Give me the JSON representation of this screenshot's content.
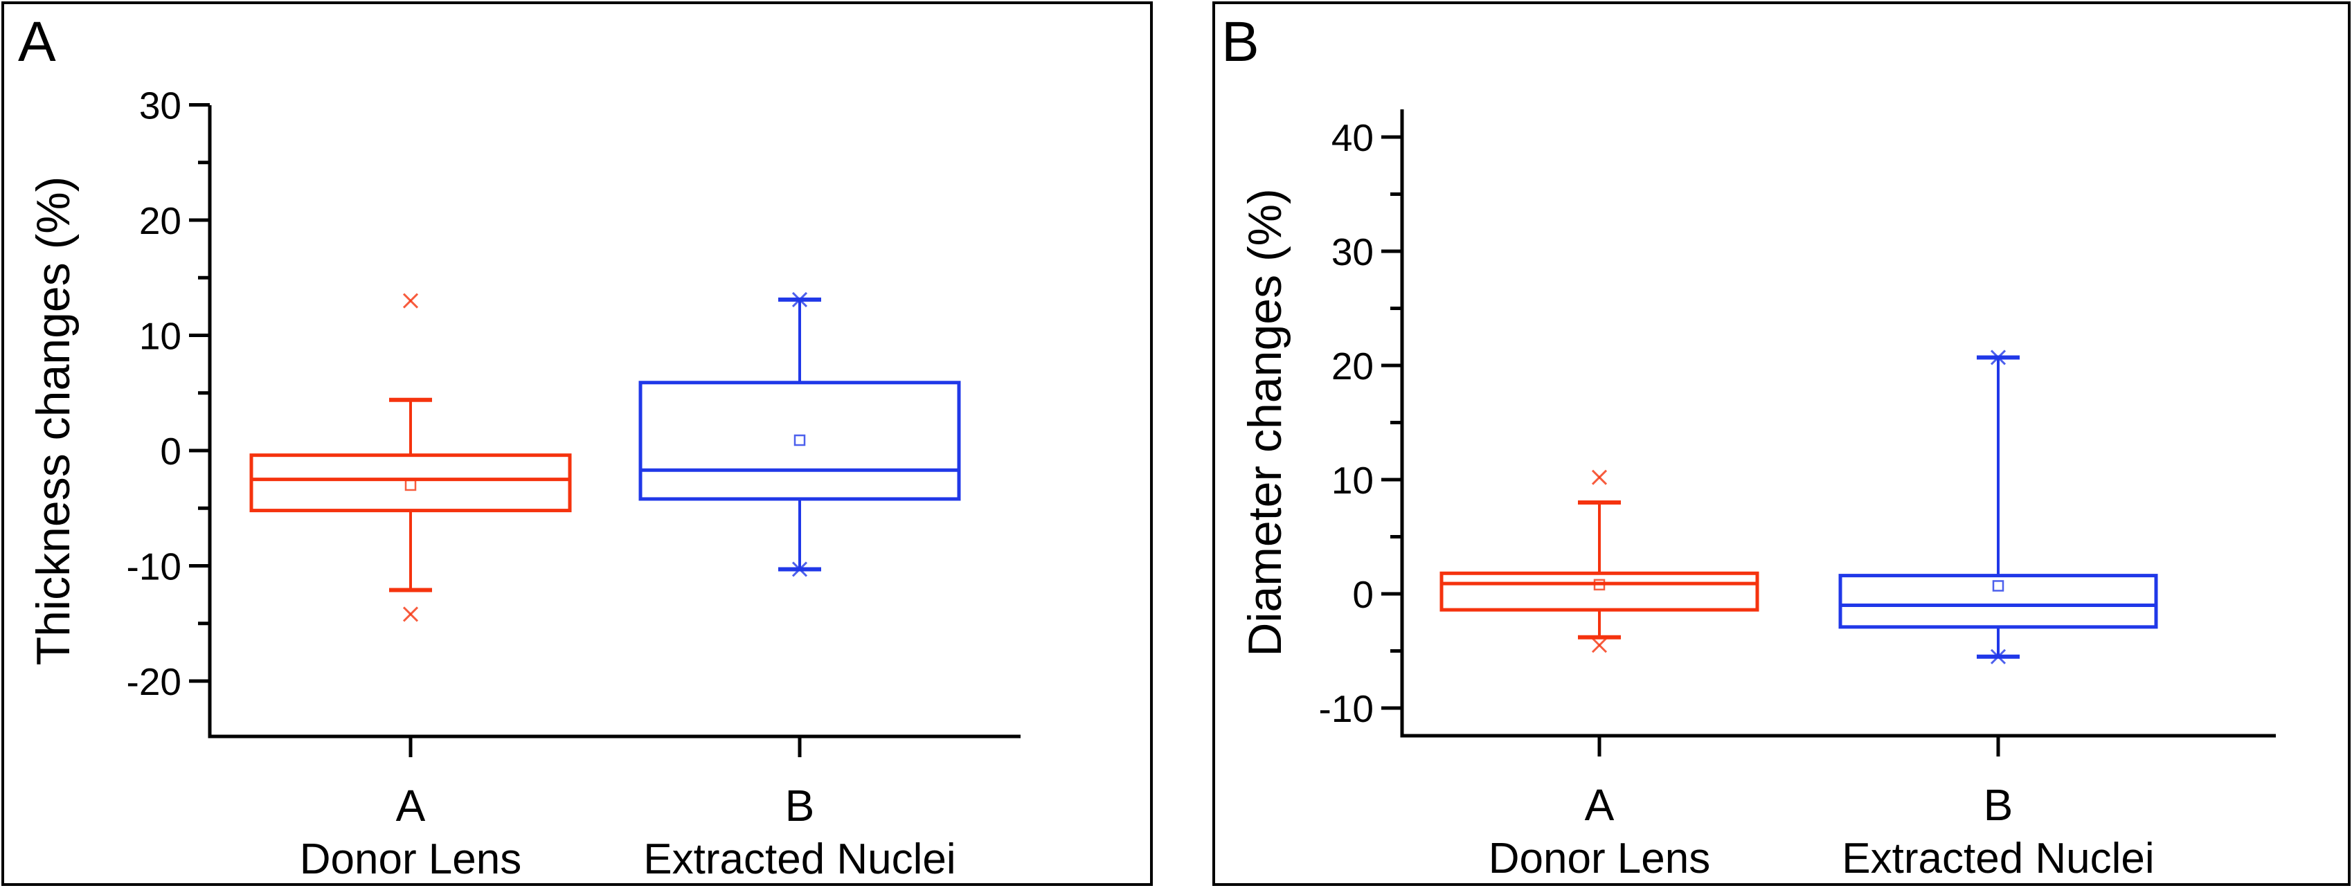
{
  "page": {
    "background": "#ffffff",
    "border_color": "#000000"
  },
  "panels": [
    {
      "corner_label": "A"
    },
    {
      "corner_label": "B"
    }
  ],
  "chart_data": [
    {
      "type": "box",
      "panel_label": "A",
      "title": "",
      "xlabel": "",
      "ylabel": "Thickness changes (%)",
      "ylim": [
        -24.8,
        30
      ],
      "yticks_major": [
        30,
        20,
        10,
        0,
        -10,
        -20
      ],
      "yticks_minor": [
        25,
        15,
        5,
        -5,
        -15
      ],
      "grid": false,
      "legend": "none",
      "categories": [
        "A",
        "B"
      ],
      "category_sublabels": [
        "Donor Lens",
        "Extracted Nuclei"
      ],
      "series": [
        {
          "name": "Donor Lens",
          "color": "#f5330e",
          "box": {
            "q3": -0.4,
            "median": -2.5,
            "mean": -3.0,
            "q1": -5.2,
            "whisker_high": 4.4,
            "whisker_low": -12.1,
            "outliers": [
              13.0,
              -14.2
            ]
          }
        },
        {
          "name": "Extracted Nuclei",
          "color": "#2038e8",
          "box": {
            "q3": 5.9,
            "median": -1.7,
            "mean": 0.9,
            "q1": -4.2,
            "whisker_high": 13.1,
            "whisker_low": -10.3,
            "outliers": [
              13.1,
              -10.3
            ]
          }
        }
      ]
    },
    {
      "type": "box",
      "panel_label": "B",
      "title": "",
      "xlabel": "",
      "ylabel": "Diameter changes (%)",
      "ylim": [
        -12.4,
        42.6
      ],
      "yticks_major": [
        40,
        30,
        20,
        10,
        0,
        -10
      ],
      "yticks_minor": [
        35,
        25,
        15,
        5,
        -5
      ],
      "grid": false,
      "legend": "none",
      "categories": [
        "A",
        "B"
      ],
      "category_sublabels": [
        "Donor Lens",
        "Extracted Nuclei"
      ],
      "series": [
        {
          "name": "Donor Lens",
          "color": "#f5330e",
          "box": {
            "q3": 1.8,
            "median": 0.9,
            "mean": 0.8,
            "q1": -1.4,
            "whisker_high": 8.0,
            "whisker_low": -3.8,
            "outliers": [
              10.2,
              -4.5
            ]
          }
        },
        {
          "name": "Extracted Nuclei",
          "color": "#2038e8",
          "box": {
            "q3": 1.6,
            "median": -1.0,
            "mean": 0.7,
            "q1": -2.9,
            "whisker_high": 20.7,
            "whisker_low": -5.5,
            "outliers": [
              20.7,
              -5.5
            ]
          }
        }
      ]
    }
  ]
}
